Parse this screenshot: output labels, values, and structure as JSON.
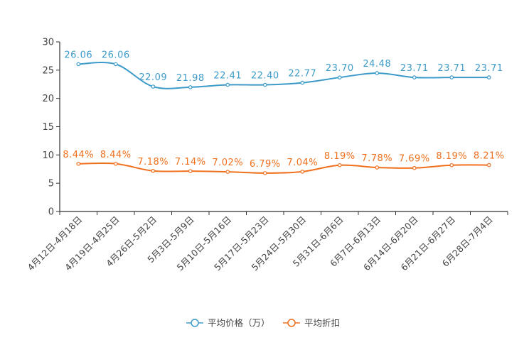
{
  "chart_data": {
    "type": "line",
    "title": "",
    "xlabel": "",
    "ylabel": "",
    "ylim": [
      0,
      30
    ],
    "yticks": [
      0,
      5,
      10,
      15,
      20,
      25,
      30
    ],
    "grid": false,
    "legend_position": "bottom",
    "categories": [
      "4月12日-4月18日",
      "4月19日-4月25日",
      "4月26日-5月2日",
      "5月3日-5月9日",
      "5月10日-5月16日",
      "5月17日-5月23日",
      "5月24日-5月30日",
      "5月31日-6月6日",
      "6月7日-6月13日",
      "6月14日-6月20日",
      "6月21日-6月27日",
      "6月28日-7月4日"
    ],
    "series": [
      {
        "name": "平均价格（万）",
        "color": "#3d9bc9",
        "values": [
          26.06,
          26.06,
          22.09,
          21.98,
          22.41,
          22.4,
          22.77,
          23.7,
          24.48,
          23.71,
          23.71,
          23.71
        ],
        "labels": [
          "26.06",
          "26.06",
          "22.09",
          "21.98",
          "22.41",
          "22.40",
          "22.77",
          "23.70",
          "24.48",
          "23.71",
          "23.71",
          "23.71"
        ]
      },
      {
        "name": "平均折扣",
        "color": "#f0701d",
        "values": [
          8.44,
          8.44,
          7.18,
          7.14,
          7.02,
          6.79,
          7.04,
          8.19,
          7.78,
          7.69,
          8.19,
          8.21
        ],
        "labels": [
          "8.44%",
          "8.44%",
          "7.18%",
          "7.14%",
          "7.02%",
          "6.79%",
          "7.04%",
          "8.19%",
          "7.78%",
          "7.69%",
          "8.19%",
          "8.21%"
        ]
      }
    ]
  }
}
